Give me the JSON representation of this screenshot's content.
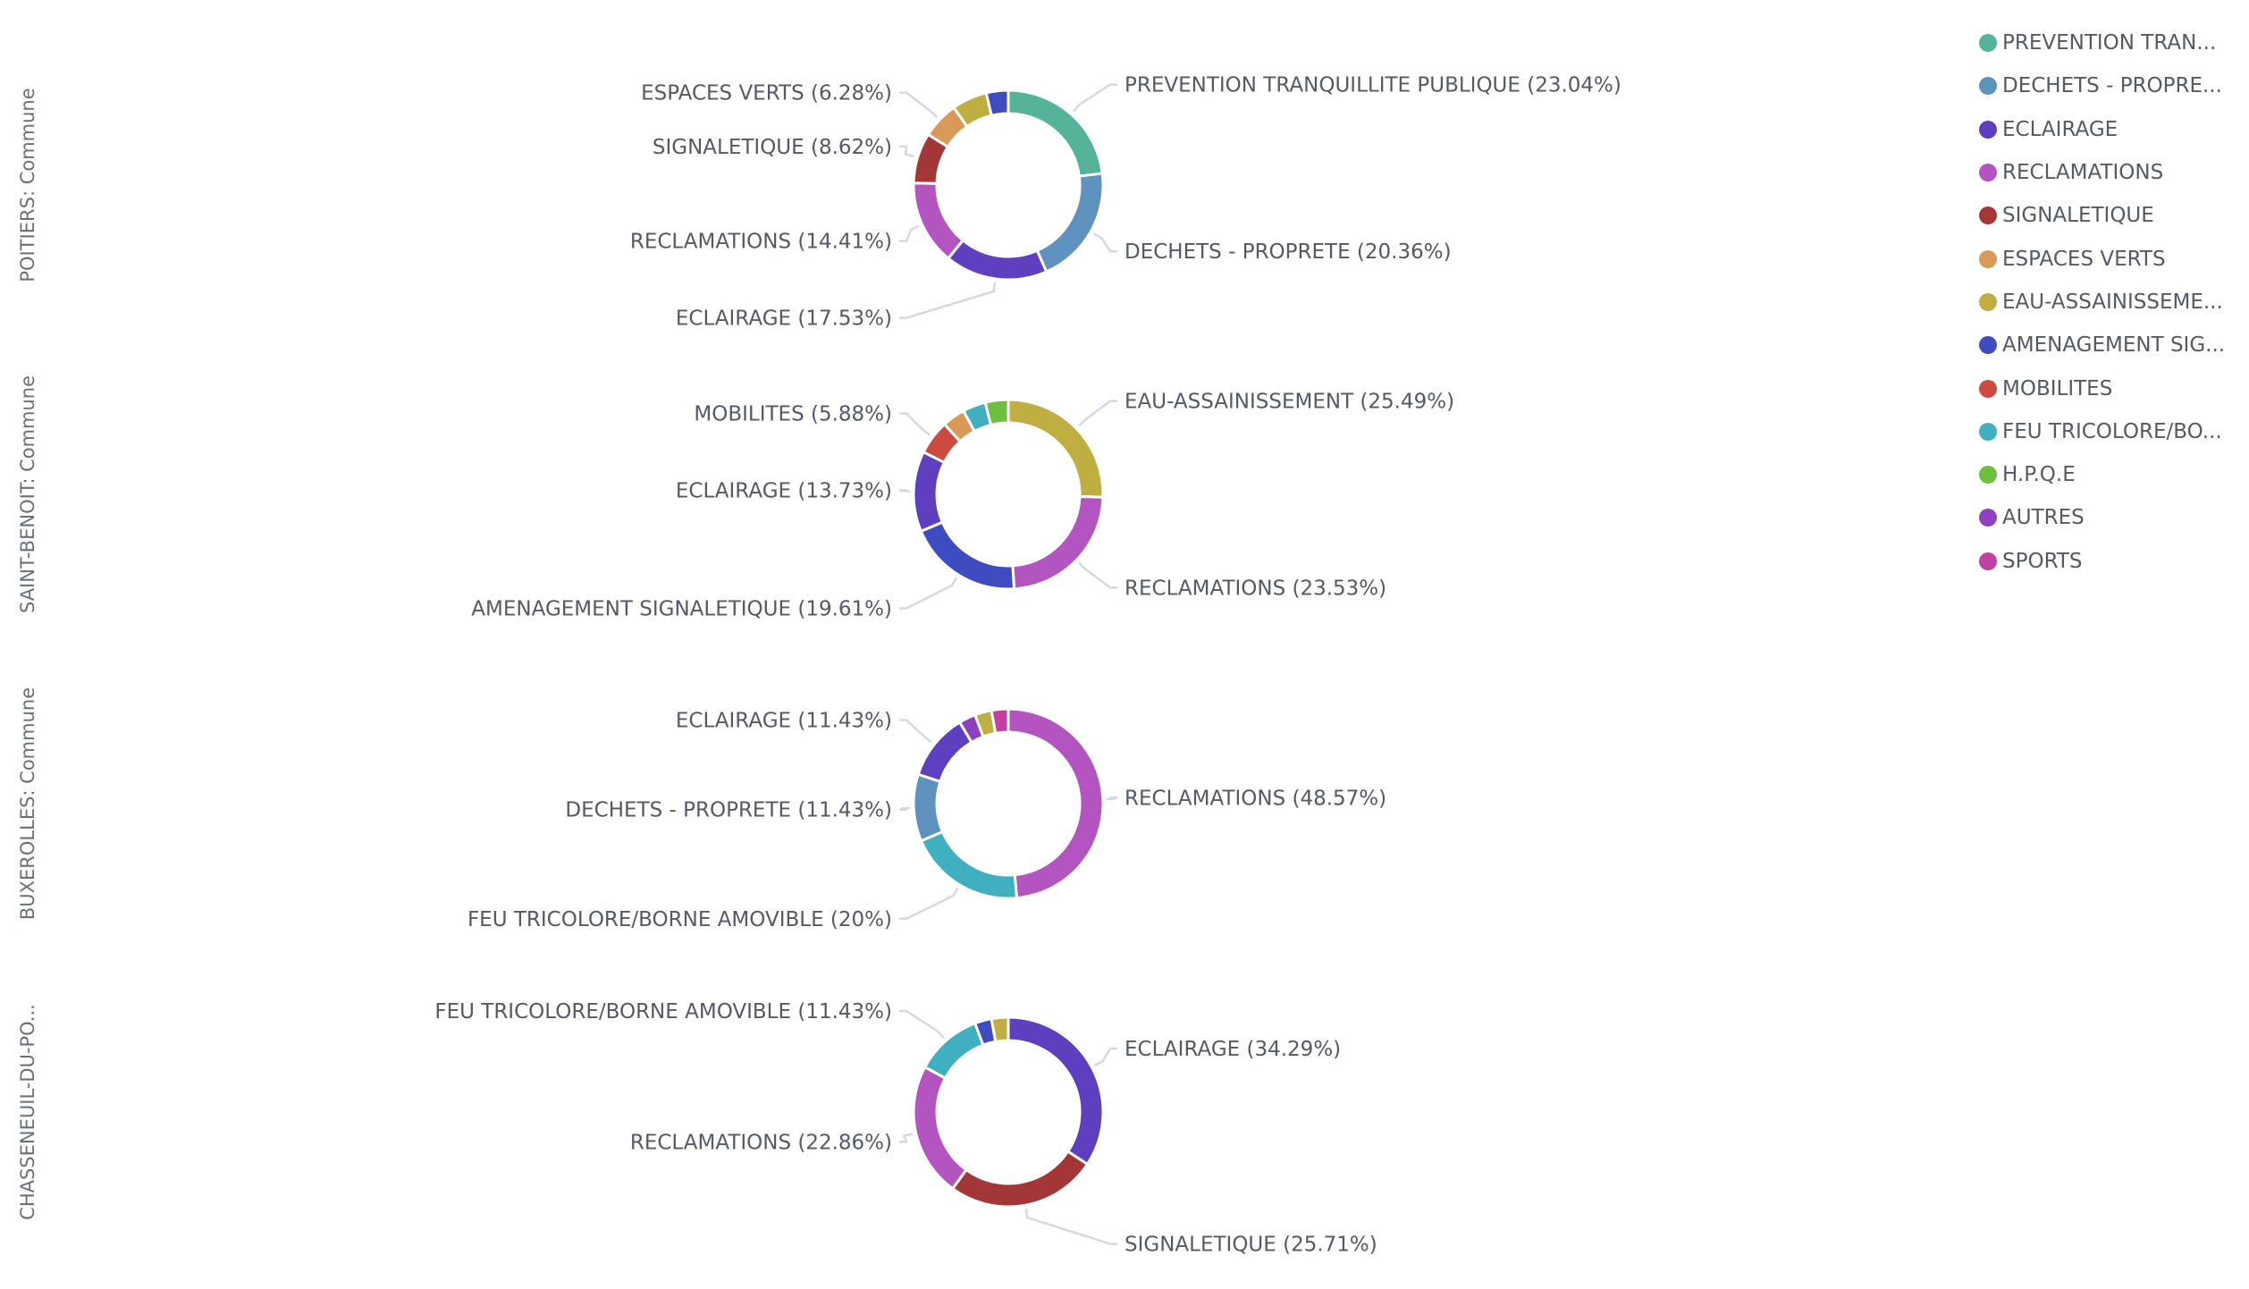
{
  "legend": [
    {
      "label": "PREVENTION TRAN...",
      "color": "#54b399"
    },
    {
      "label": "DECHETS - PROPRE...",
      "color": "#6092c0"
    },
    {
      "label": "ECLAIRAGE",
      "color": "#5e3fbf"
    },
    {
      "label": "RECLAMATIONS",
      "color": "#b454c0"
    },
    {
      "label": "SIGNALETIQUE",
      "color": "#a33636"
    },
    {
      "label": "ESPACES VERTS",
      "color": "#d99a59"
    },
    {
      "label": "EAU-ASSAINISSEME...",
      "color": "#bfae40"
    },
    {
      "label": "AMENAGEMENT SIG...",
      "color": "#3f4cc0"
    },
    {
      "label": "MOBILITES",
      "color": "#cc4a40"
    },
    {
      "label": "FEU TRICOLORE/BO...",
      "color": "#40b0c0"
    },
    {
      "label": "H.P.Q.E",
      "color": "#6dbf3f"
    },
    {
      "label": "AUTRES",
      "color": "#8e40c0"
    },
    {
      "label": "SPORTS",
      "color": "#c040a3"
    }
  ],
  "chart_data": [
    {
      "type": "pie",
      "donut": true,
      "title": "POITIERS: Commune",
      "slices": [
        {
          "name": "PREVENTION TRANQUILLITE PUBLIQUE",
          "value": 23.04,
          "label": "PREVENTION TRANQUILLITE PUBLIQUE (23.04%)",
          "color": "#54b399"
        },
        {
          "name": "DECHETS - PROPRETE",
          "value": 20.36,
          "label": "DECHETS - PROPRETE (20.36%)",
          "color": "#6092c0"
        },
        {
          "name": "ECLAIRAGE",
          "value": 17.53,
          "label": "ECLAIRAGE (17.53%)",
          "color": "#5e3fbf"
        },
        {
          "name": "RECLAMATIONS",
          "value": 14.41,
          "label": "RECLAMATIONS (14.41%)",
          "color": "#b454c0"
        },
        {
          "name": "SIGNALETIQUE",
          "value": 8.62,
          "label": "SIGNALETIQUE (8.62%)",
          "color": "#a33636"
        },
        {
          "name": "ESPACES VERTS",
          "value": 6.28,
          "label": "ESPACES VERTS (6.28%)",
          "color": "#d99a59"
        },
        {
          "name": "EAU-ASSAINISSEMENT",
          "value": 6.0,
          "label": "",
          "color": "#bfae40"
        },
        {
          "name": "AMENAGEMENT SIGNALETIQUE",
          "value": 3.76,
          "label": "",
          "color": "#3f4cc0"
        }
      ]
    },
    {
      "type": "pie",
      "donut": true,
      "title": "SAINT-BENOIT: Commune",
      "slices": [
        {
          "name": "EAU-ASSAINISSEMENT",
          "value": 25.49,
          "label": "EAU-ASSAINISSEMENT (25.49%)",
          "color": "#bfae40"
        },
        {
          "name": "RECLAMATIONS",
          "value": 23.53,
          "label": "RECLAMATIONS (23.53%)",
          "color": "#b454c0"
        },
        {
          "name": "AMENAGEMENT SIGNALETIQUE",
          "value": 19.61,
          "label": "AMENAGEMENT SIGNALETIQUE (19.61%)",
          "color": "#3f4cc0"
        },
        {
          "name": "ECLAIRAGE",
          "value": 13.73,
          "label": "ECLAIRAGE (13.73%)",
          "color": "#5e3fbf"
        },
        {
          "name": "MOBILITES",
          "value": 5.88,
          "label": "MOBILITES (5.88%)",
          "color": "#cc4a40"
        },
        {
          "name": "ESPACES VERTS",
          "value": 3.92,
          "label": "",
          "color": "#d99a59"
        },
        {
          "name": "FEU TRICOLORE/BORNE AMOVIBLE",
          "value": 3.92,
          "label": "",
          "color": "#40b0c0"
        },
        {
          "name": "H.P.Q.E",
          "value": 3.92,
          "label": "",
          "color": "#6dbf3f"
        }
      ]
    },
    {
      "type": "pie",
      "donut": true,
      "title": "BUXEROLLES: Commune",
      "slices": [
        {
          "name": "RECLAMATIONS",
          "value": 48.57,
          "label": "RECLAMATIONS (48.57%)",
          "color": "#b454c0"
        },
        {
          "name": "FEU TRICOLORE/BORNE AMOVIBLE",
          "value": 20,
          "label": "FEU TRICOLORE/BORNE AMOVIBLE (20%)",
          "color": "#40b0c0"
        },
        {
          "name": "DECHETS - PROPRETE",
          "value": 11.43,
          "label": "DECHETS - PROPRETE (11.43%)",
          "color": "#6092c0"
        },
        {
          "name": "ECLAIRAGE",
          "value": 11.43,
          "label": "ECLAIRAGE (11.43%)",
          "color": "#5e3fbf"
        },
        {
          "name": "AUTRES",
          "value": 2.86,
          "label": "",
          "color": "#8e40c0"
        },
        {
          "name": "EAU-ASSAINISSEMENT",
          "value": 2.86,
          "label": "",
          "color": "#bfae40"
        },
        {
          "name": "SPORTS",
          "value": 2.85,
          "label": "",
          "color": "#c040a3"
        }
      ]
    },
    {
      "type": "pie",
      "donut": true,
      "title": "CHASSENEUIL-DU-PO...",
      "slices": [
        {
          "name": "ECLAIRAGE",
          "value": 34.29,
          "label": "ECLAIRAGE (34.29%)",
          "color": "#5e3fbf"
        },
        {
          "name": "SIGNALETIQUE",
          "value": 25.71,
          "label": "SIGNALETIQUE (25.71%)",
          "color": "#a33636"
        },
        {
          "name": "RECLAMATIONS",
          "value": 22.86,
          "label": "RECLAMATIONS (22.86%)",
          "color": "#b454c0"
        },
        {
          "name": "FEU TRICOLORE/BORNE AMOVIBLE",
          "value": 11.43,
          "label": "FEU TRICOLORE/BORNE AMOVIBLE (11.43%)",
          "color": "#40b0c0"
        },
        {
          "name": "AMENAGEMENT SIGNALETIQUE",
          "value": 2.86,
          "label": "",
          "color": "#3f4cc0"
        },
        {
          "name": "EAU-ASSAINISSEMENT",
          "value": 2.85,
          "label": "",
          "color": "#bfae40"
        }
      ]
    }
  ]
}
